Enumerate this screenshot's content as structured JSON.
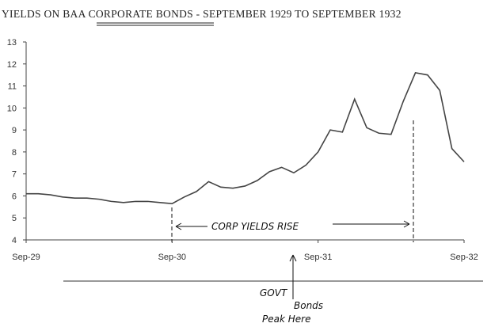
{
  "chart_data": {
    "type": "line",
    "title": [
      "YIELDS ON BAA ",
      "CORPORATE BONDS",
      " - SEPTEMBER 1929 TO SEPTEMBER 1932"
    ],
    "categories": [
      "Sep-29",
      null,
      null,
      null,
      null,
      null,
      null,
      null,
      null,
      null,
      null,
      null,
      "Sep-30",
      null,
      null,
      null,
      null,
      null,
      null,
      null,
      null,
      null,
      null,
      null,
      "Sep-31",
      null,
      null,
      null,
      null,
      null,
      null,
      null,
      null,
      null,
      null,
      null,
      "Sep-32"
    ],
    "series": [
      {
        "color": "#444444",
        "values": [
          6.1,
          6.1,
          6.05,
          5.95,
          5.9,
          5.9,
          5.85,
          5.75,
          5.7,
          5.75,
          5.75,
          5.7,
          5.65,
          5.95,
          6.2,
          6.65,
          6.4,
          6.35,
          6.45,
          6.7,
          7.1,
          7.3,
          7.05,
          7.4,
          8.0,
          9.0,
          8.9,
          10.4,
          9.1,
          8.85,
          8.8,
          10.3,
          11.6,
          11.5,
          10.8,
          8.15,
          7.55
        ]
      }
    ],
    "ylim": [
      4,
      13
    ],
    "yticks": [
      4,
      5,
      6,
      7,
      8,
      9,
      10,
      11,
      12,
      13
    ],
    "grid": false,
    "annotations": [
      "CORP YIELDS RISE",
      "GOVT",
      "Bonds",
      "Peak Here"
    ]
  }
}
